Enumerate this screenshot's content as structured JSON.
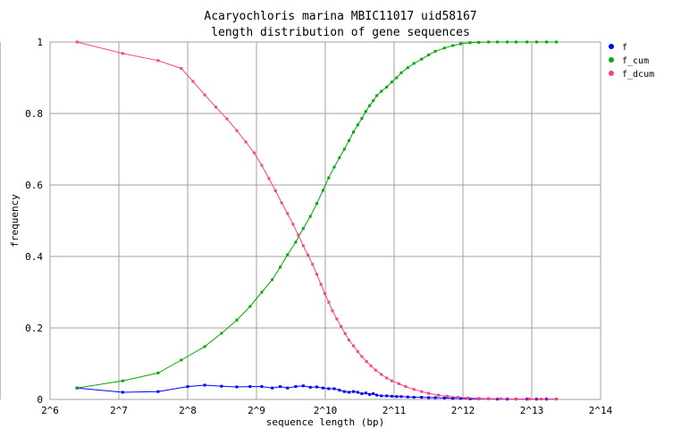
{
  "chart_data": {
    "type": "line",
    "title": "Acaryochloris marina MBIC11017 uid58167",
    "subtitle": "length distribution of gene sequences",
    "xlabel": "sequence length (bp)",
    "ylabel": "frequency",
    "x_scale": "log2",
    "xlim": [
      64,
      16384
    ],
    "ylim": [
      0,
      1
    ],
    "grid": true,
    "legend_position": "right",
    "x_ticks": [
      {
        "value": 64,
        "label": "2^6"
      },
      {
        "value": 128,
        "label": "2^7"
      },
      {
        "value": 256,
        "label": "2^8"
      },
      {
        "value": 512,
        "label": "2^9"
      },
      {
        "value": 1024,
        "label": "2^10"
      },
      {
        "value": 2048,
        "label": "2^11"
      },
      {
        "value": 4096,
        "label": "2^12"
      },
      {
        "value": 8192,
        "label": "2^13"
      },
      {
        "value": 16384,
        "label": "2^14"
      }
    ],
    "y_ticks": [
      {
        "value": 0,
        "label": "0"
      },
      {
        "value": 0.2,
        "label": "0.2"
      },
      {
        "value": 0.4,
        "label": "0.4"
      },
      {
        "value": 0.6,
        "label": "0.6"
      },
      {
        "value": 0.8,
        "label": "0.8"
      },
      {
        "value": 1,
        "label": "1"
      }
    ],
    "series": [
      {
        "name": "f",
        "color": "#0000ff",
        "points": [
          [
            84,
            0.032
          ],
          [
            133,
            0.02
          ],
          [
            190,
            0.022
          ],
          [
            256,
            0.036
          ],
          [
            304,
            0.04
          ],
          [
            360,
            0.037
          ],
          [
            420,
            0.035
          ],
          [
            480,
            0.036
          ],
          [
            540,
            0.036
          ],
          [
            600,
            0.032
          ],
          [
            650,
            0.036
          ],
          [
            700,
            0.032
          ],
          [
            760,
            0.036
          ],
          [
            820,
            0.038
          ],
          [
            880,
            0.034
          ],
          [
            940,
            0.035
          ],
          [
            1000,
            0.032
          ],
          [
            1060,
            0.03
          ],
          [
            1120,
            0.03
          ],
          [
            1180,
            0.026
          ],
          [
            1240,
            0.022
          ],
          [
            1300,
            0.02
          ],
          [
            1360,
            0.022
          ],
          [
            1420,
            0.02
          ],
          [
            1480,
            0.016
          ],
          [
            1540,
            0.018
          ],
          [
            1600,
            0.014
          ],
          [
            1660,
            0.016
          ],
          [
            1720,
            0.012
          ],
          [
            1800,
            0.01
          ],
          [
            1900,
            0.01
          ],
          [
            2000,
            0.009
          ],
          [
            2100,
            0.008
          ],
          [
            2200,
            0.008
          ],
          [
            2350,
            0.007
          ],
          [
            2500,
            0.006
          ],
          [
            2700,
            0.006
          ],
          [
            2900,
            0.005
          ],
          [
            3100,
            0.005
          ],
          [
            3400,
            0.004
          ],
          [
            3700,
            0.003
          ],
          [
            4000,
            0.003
          ],
          [
            4400,
            0.002
          ],
          [
            4800,
            0.002
          ],
          [
            5300,
            0.002
          ],
          [
            5800,
            0.001
          ],
          [
            6400,
            0.001
          ],
          [
            7000,
            0.001
          ],
          [
            7800,
            0.001
          ],
          [
            8600,
            0.001
          ],
          [
            9500,
            0.001
          ],
          [
            10500,
            0.001
          ]
        ]
      },
      {
        "name": "f_cum",
        "color": "#00aa00",
        "points": [
          [
            84,
            0.032
          ],
          [
            133,
            0.052
          ],
          [
            190,
            0.074
          ],
          [
            240,
            0.11
          ],
          [
            304,
            0.148
          ],
          [
            360,
            0.185
          ],
          [
            420,
            0.222
          ],
          [
            480,
            0.26
          ],
          [
            540,
            0.3
          ],
          [
            600,
            0.335
          ],
          [
            650,
            0.37
          ],
          [
            700,
            0.405
          ],
          [
            760,
            0.44
          ],
          [
            820,
            0.478
          ],
          [
            880,
            0.512
          ],
          [
            940,
            0.548
          ],
          [
            1000,
            0.585
          ],
          [
            1060,
            0.62
          ],
          [
            1120,
            0.65
          ],
          [
            1180,
            0.676
          ],
          [
            1240,
            0.7
          ],
          [
            1300,
            0.724
          ],
          [
            1360,
            0.748
          ],
          [
            1420,
            0.768
          ],
          [
            1480,
            0.786
          ],
          [
            1540,
            0.806
          ],
          [
            1600,
            0.822
          ],
          [
            1660,
            0.836
          ],
          [
            1720,
            0.85
          ],
          [
            1800,
            0.862
          ],
          [
            1900,
            0.874
          ],
          [
            2000,
            0.888
          ],
          [
            2100,
            0.9
          ],
          [
            2200,
            0.914
          ],
          [
            2350,
            0.928
          ],
          [
            2500,
            0.94
          ],
          [
            2700,
            0.952
          ],
          [
            2900,
            0.964
          ],
          [
            3100,
            0.974
          ],
          [
            3400,
            0.983
          ],
          [
            3700,
            0.99
          ],
          [
            4000,
            0.995
          ],
          [
            4400,
            0.998
          ],
          [
            4800,
            0.999
          ],
          [
            5300,
            1.0
          ],
          [
            5800,
            1.0
          ],
          [
            6400,
            1.0
          ],
          [
            7000,
            1.0
          ],
          [
            7800,
            1.0
          ],
          [
            8600,
            1.0
          ],
          [
            9500,
            1.0
          ],
          [
            10500,
            1.0
          ]
        ]
      },
      {
        "name": "f_dcum",
        "color": "#ff4080",
        "points": [
          [
            84,
            1.0
          ],
          [
            133,
            0.968
          ],
          [
            190,
            0.948
          ],
          [
            240,
            0.926
          ],
          [
            270,
            0.89
          ],
          [
            304,
            0.852
          ],
          [
            340,
            0.818
          ],
          [
            380,
            0.785
          ],
          [
            420,
            0.752
          ],
          [
            460,
            0.72
          ],
          [
            500,
            0.69
          ],
          [
            540,
            0.655
          ],
          [
            580,
            0.618
          ],
          [
            620,
            0.584
          ],
          [
            660,
            0.55
          ],
          [
            700,
            0.52
          ],
          [
            740,
            0.49
          ],
          [
            780,
            0.46
          ],
          [
            820,
            0.43
          ],
          [
            860,
            0.404
          ],
          [
            900,
            0.378
          ],
          [
            940,
            0.35
          ],
          [
            980,
            0.322
          ],
          [
            1020,
            0.296
          ],
          [
            1060,
            0.272
          ],
          [
            1100,
            0.248
          ],
          [
            1150,
            0.225
          ],
          [
            1200,
            0.204
          ],
          [
            1250,
            0.184
          ],
          [
            1300,
            0.166
          ],
          [
            1360,
            0.15
          ],
          [
            1420,
            0.134
          ],
          [
            1480,
            0.12
          ],
          [
            1550,
            0.106
          ],
          [
            1620,
            0.094
          ],
          [
            1700,
            0.082
          ],
          [
            1800,
            0.07
          ],
          [
            1900,
            0.06
          ],
          [
            2000,
            0.052
          ],
          [
            2150,
            0.044
          ],
          [
            2300,
            0.036
          ],
          [
            2500,
            0.028
          ],
          [
            2700,
            0.022
          ],
          [
            2900,
            0.017
          ],
          [
            3200,
            0.012
          ],
          [
            3500,
            0.009
          ],
          [
            3900,
            0.006
          ],
          [
            4300,
            0.004
          ],
          [
            4800,
            0.003
          ],
          [
            5300,
            0.002
          ],
          [
            6000,
            0.002
          ],
          [
            7000,
            0.001
          ],
          [
            8000,
            0.001
          ],
          [
            9000,
            0.001
          ],
          [
            10500,
            0.001
          ]
        ]
      }
    ]
  }
}
